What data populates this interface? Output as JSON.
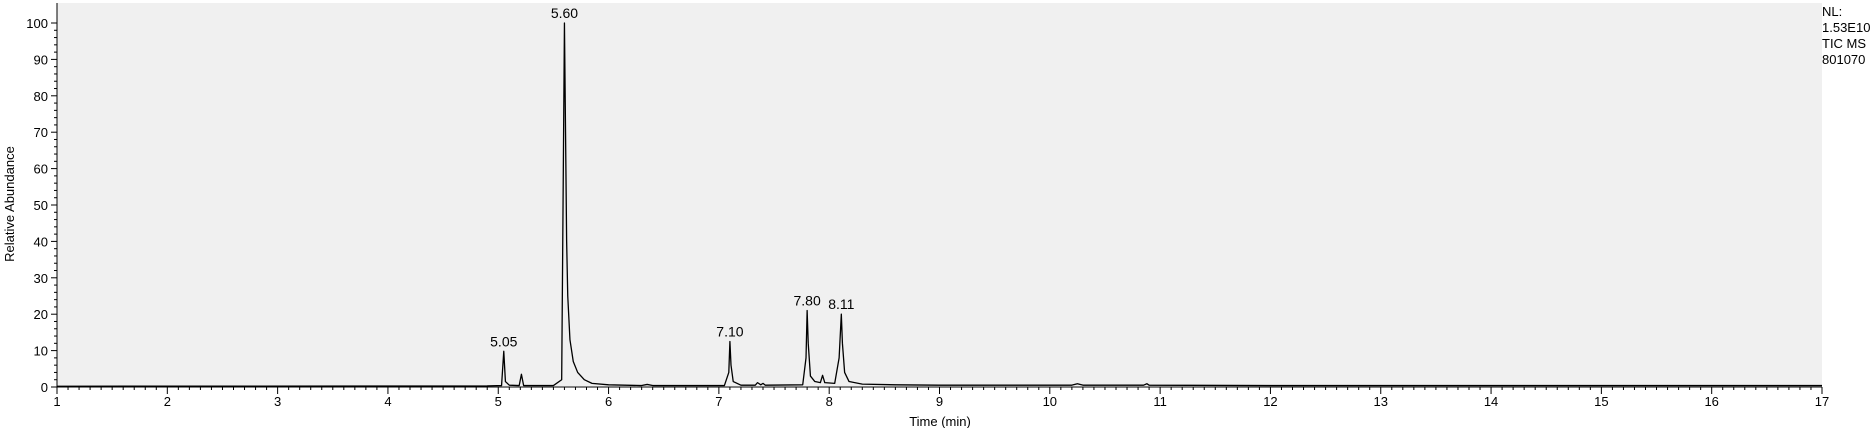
{
  "chart_data": {
    "type": "line",
    "title": "",
    "xlabel": "Time (min)",
    "ylabel": "Relative Abundance",
    "xlim": [
      1,
      17
    ],
    "ylim": [
      0,
      100
    ],
    "x_ticks": [
      1,
      2,
      3,
      4,
      5,
      6,
      7,
      8,
      9,
      10,
      11,
      12,
      13,
      14,
      15,
      16,
      17
    ],
    "y_ticks": [
      0,
      10,
      20,
      30,
      40,
      50,
      60,
      70,
      80,
      90,
      100
    ],
    "grid": false,
    "legend": "none",
    "series": [
      {
        "color": "#000000",
        "points": [
          [
            1.0,
            0.2
          ],
          [
            4.9,
            0.3
          ],
          [
            5.03,
            0.4
          ],
          [
            5.05,
            9.8
          ],
          [
            5.065,
            1.5
          ],
          [
            5.1,
            0.5
          ],
          [
            5.19,
            0.4
          ],
          [
            5.21,
            3.5
          ],
          [
            5.23,
            0.4
          ],
          [
            5.5,
            0.4
          ],
          [
            5.575,
            2.0
          ],
          [
            5.59,
            60
          ],
          [
            5.6,
            100
          ],
          [
            5.61,
            70
          ],
          [
            5.62,
            40
          ],
          [
            5.63,
            25
          ],
          [
            5.65,
            13
          ],
          [
            5.68,
            7
          ],
          [
            5.72,
            4
          ],
          [
            5.78,
            2
          ],
          [
            5.85,
            1
          ],
          [
            6.0,
            0.6
          ],
          [
            6.3,
            0.4
          ],
          [
            6.35,
            0.7
          ],
          [
            6.4,
            0.4
          ],
          [
            7.05,
            0.4
          ],
          [
            7.09,
            4
          ],
          [
            7.1,
            12.5
          ],
          [
            7.11,
            6
          ],
          [
            7.13,
            1.5
          ],
          [
            7.2,
            0.5
          ],
          [
            7.33,
            0.5
          ],
          [
            7.35,
            1.2
          ],
          [
            7.38,
            0.6
          ],
          [
            7.4,
            1.0
          ],
          [
            7.42,
            0.5
          ],
          [
            7.76,
            0.6
          ],
          [
            7.79,
            8
          ],
          [
            7.8,
            21
          ],
          [
            7.81,
            12
          ],
          [
            7.83,
            3
          ],
          [
            7.87,
            1.5
          ],
          [
            7.92,
            1.2
          ],
          [
            7.94,
            3.2
          ],
          [
            7.96,
            1.2
          ],
          [
            8.05,
            1.0
          ],
          [
            8.09,
            8
          ],
          [
            8.11,
            20
          ],
          [
            8.12,
            12
          ],
          [
            8.14,
            4
          ],
          [
            8.18,
            1.5
          ],
          [
            8.3,
            0.8
          ],
          [
            8.6,
            0.6
          ],
          [
            9.0,
            0.5
          ],
          [
            10.2,
            0.5
          ],
          [
            10.25,
            0.9
          ],
          [
            10.3,
            0.5
          ],
          [
            10.85,
            0.5
          ],
          [
            10.88,
            0.9
          ],
          [
            10.9,
            0.5
          ],
          [
            12.0,
            0.4
          ],
          [
            15.0,
            0.4
          ],
          [
            17.0,
            0.4
          ]
        ]
      }
    ],
    "annotations": [
      {
        "x": 5.05,
        "y": 9.8,
        "text": "5.05"
      },
      {
        "x": 5.6,
        "y": 100,
        "text": "5.60"
      },
      {
        "x": 7.1,
        "y": 12.5,
        "text": "7.10"
      },
      {
        "x": 7.8,
        "y": 21,
        "text": "7.80"
      },
      {
        "x": 8.11,
        "y": 20,
        "text": "8.11"
      }
    ]
  },
  "info": {
    "nl_label": "NL:",
    "nl_value": "1.53E10",
    "trace": "TIC  MS",
    "sample": "801070"
  }
}
